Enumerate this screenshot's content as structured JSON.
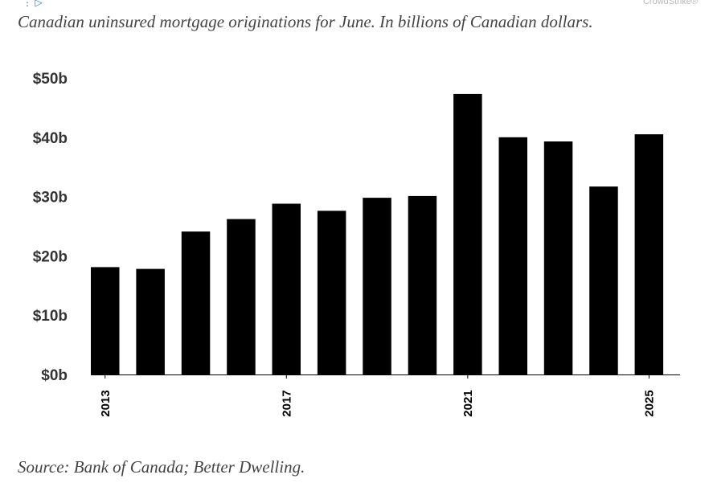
{
  "ad": {
    "brand": "CrowdStrike®"
  },
  "header": {
    "subtitle": "Canadian uninsured mortgage originations for June. In billions of Canadian dollars."
  },
  "footer": {
    "source": "Source: Bank of Canada; Better Dwelling."
  },
  "colors": {
    "bar": "#000000",
    "text": "#444444",
    "axis": "#333333"
  },
  "chart_data": {
    "type": "bar",
    "categories": [
      "2013",
      "2014",
      "2015",
      "2016",
      "2017",
      "2018",
      "2019",
      "2020",
      "2021",
      "2022",
      "2023",
      "2024",
      "2025"
    ],
    "category_labels": [
      "2013",
      "",
      "",
      "",
      "2017",
      "",
      "",
      "",
      "2021",
      "",
      "",
      "",
      "2025"
    ],
    "values": [
      18.1,
      17.8,
      24.1,
      26.2,
      28.8,
      27.6,
      29.8,
      30.1,
      47.3,
      40.0,
      39.3,
      31.7,
      40.5
    ],
    "y_ticks": [
      0,
      10,
      20,
      30,
      40,
      50
    ],
    "y_tick_labels": [
      "$0b",
      "$10b",
      "$20b",
      "$30b",
      "$40b",
      "$50b"
    ],
    "ylim": [
      0,
      50
    ],
    "grid": false,
    "xlabel": "",
    "ylabel": ""
  }
}
